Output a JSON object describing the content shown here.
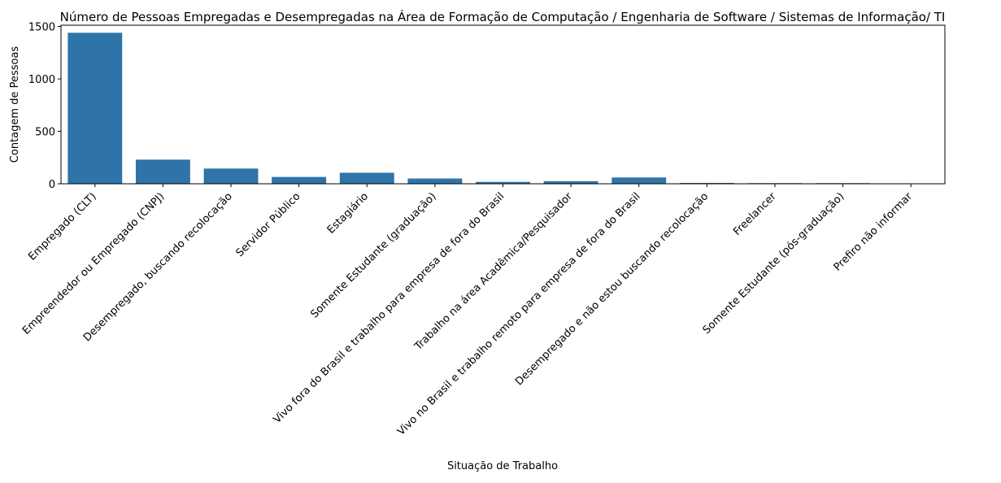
{
  "chart_data": {
    "type": "bar",
    "title": "Número de Pessoas Empregadas e Desempregadas na Área de Formação de Computação / Engenharia de Software / Sistemas de Informação/ TI",
    "xlabel": "Situação de Trabalho",
    "ylabel": "Contagem de Pessoas",
    "categories": [
      "Empregado (CLT)",
      "Empreendedor ou Empregado (CNPJ)",
      "Desempregado, buscando recolocação",
      "Servidor Público",
      "Estagiário",
      "Somente Estudante (graduação)",
      "Vivo fora do Brasil e trabalho para empresa de fora do Brasil",
      "Trabalho na área Acadêmica/Pesquisador",
      "Vivo no Brasil e trabalho remoto para empresa de fora do Brasil",
      "Desempregado e não estou buscando recolocação",
      "Freelancer",
      "Somente Estudante (pós-graduação)",
      "Prefiro não informar"
    ],
    "values": [
      1440,
      230,
      145,
      65,
      105,
      50,
      18,
      25,
      60,
      8,
      6,
      6,
      2
    ],
    "yticks": [
      0,
      500,
      1000,
      1500
    ],
    "ylim": [
      0,
      1512
    ],
    "color": "#2e74a8",
    "grid": false
  }
}
